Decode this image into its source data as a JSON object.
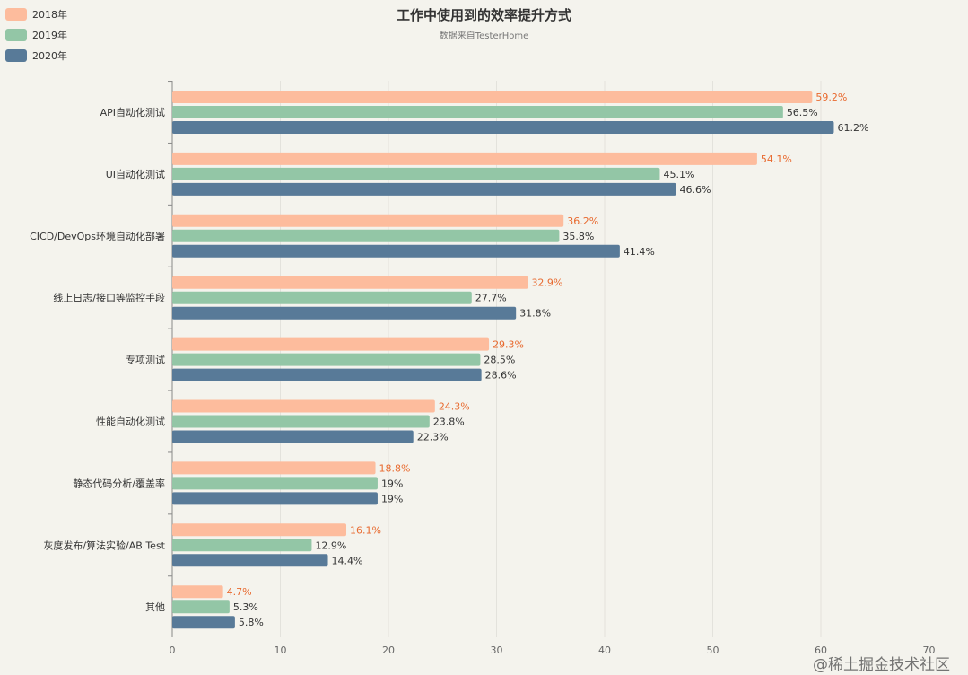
{
  "chart_data": {
    "type": "bar",
    "orientation": "horizontal",
    "title": "工作中使用到的效率提升方式",
    "subtitle": "数据来自TesterHome",
    "categories": [
      "API自动化测试",
      "UI自动化测试",
      "CICD/DevOps环境自动化部署",
      "线上日志/接口等监控手段",
      "专项测试",
      "性能自动化测试",
      "静态代码分析/覆盖率",
      "灰度发布/算法实验/AB Test",
      "其他"
    ],
    "series": [
      {
        "name": "2018年",
        "color": "#fdbc9d",
        "label_color": "#e8692e",
        "values": [
          59.2,
          54.1,
          36.2,
          32.9,
          29.3,
          24.3,
          18.8,
          16.1,
          4.7
        ]
      },
      {
        "name": "2019年",
        "color": "#93c6a6",
        "label_color": "#333333",
        "values": [
          56.5,
          45.1,
          35.8,
          27.7,
          28.5,
          23.8,
          19,
          12.9,
          5.3
        ]
      },
      {
        "name": "2020年",
        "color": "#587a98",
        "label_color": "#333333",
        "values": [
          61.2,
          46.6,
          41.4,
          31.8,
          28.6,
          22.3,
          19,
          14.4,
          5.8
        ]
      }
    ],
    "value_suffix": "%",
    "xlim": [
      0,
      70
    ],
    "xticks": [
      0,
      10,
      20,
      30,
      40,
      50,
      60,
      70
    ],
    "grid": true,
    "legend_position": "top-left"
  },
  "watermark": "@稀土掘金技术社区"
}
